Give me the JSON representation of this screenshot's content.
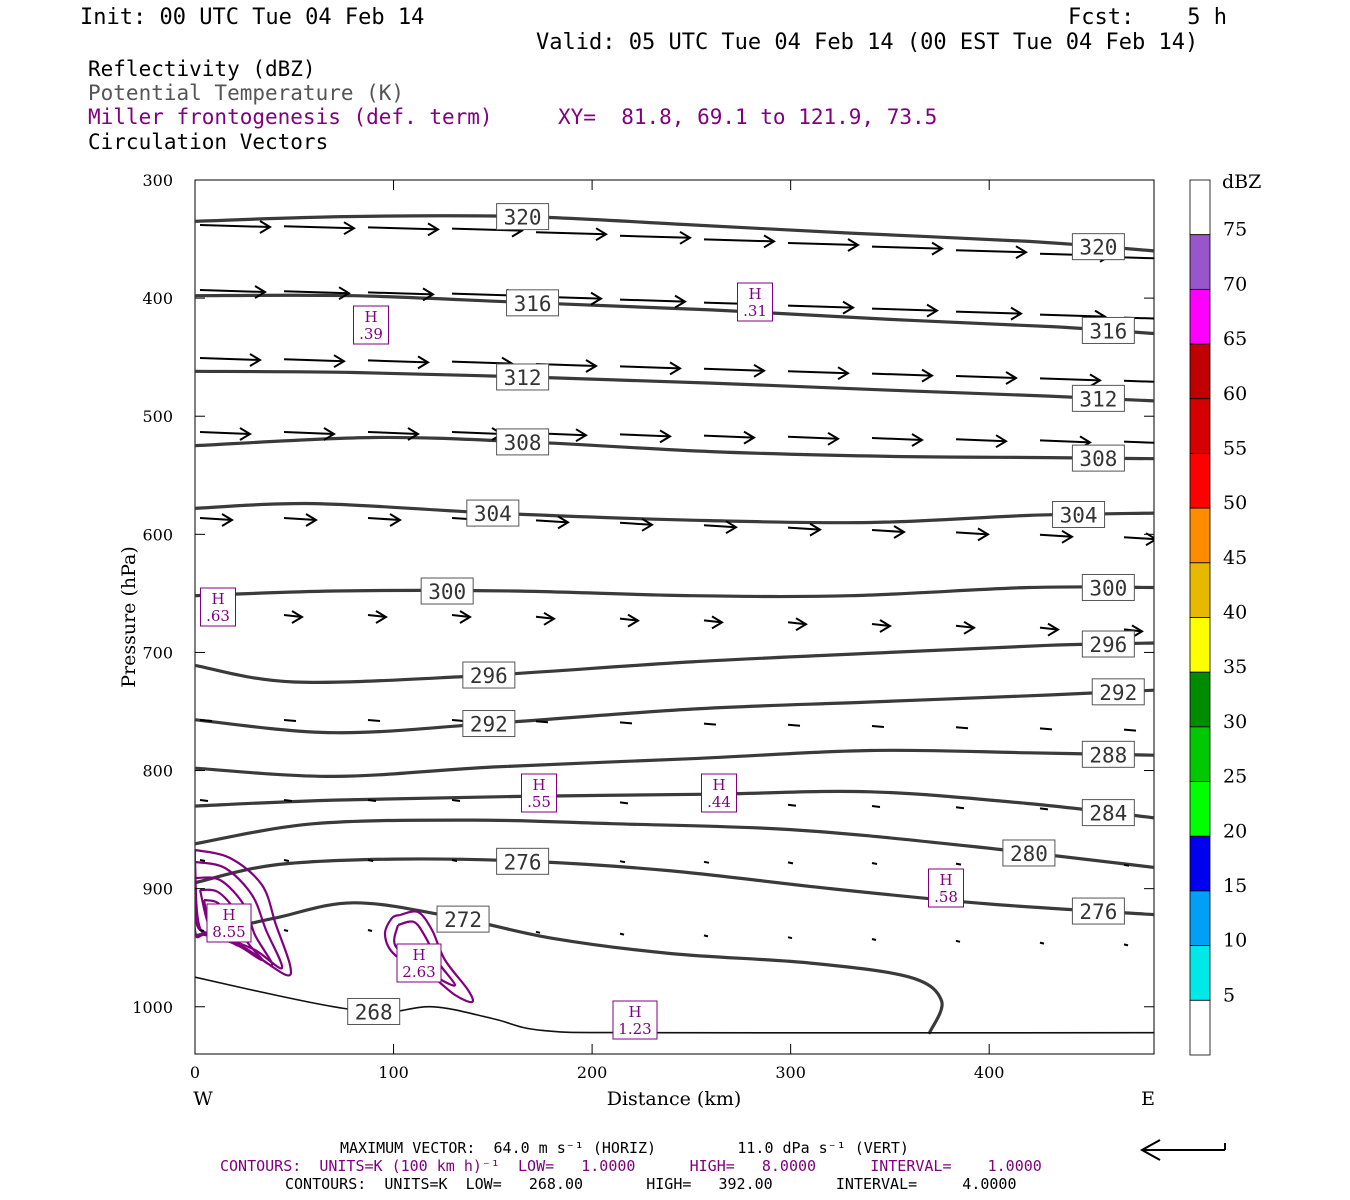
{
  "header": {
    "init": "Init: 00 UTC Tue 04 Feb 14",
    "fcst": "Fcst:    5 h",
    "valid": "Valid: 05 UTC Tue 04 Feb 14 (00 EST Tue 04 Feb 14)"
  },
  "legend": {
    "line1": "Reflectivity (dBZ)",
    "line2": "Potential Temperature (K)",
    "line3": "Miller frontogenesis (def. term)",
    "line4": "Circulation Vectors",
    "xy": "XY=  81.8, 69.1 to 121.9, 73.5"
  },
  "chart_data": {
    "type": "line",
    "xlabel": "Distance (km)",
    "ylabel": "Pressure (hPa)",
    "xlim": [
      0,
      483
    ],
    "ylim": [
      1040,
      300
    ],
    "x_ticks": [
      "0",
      "100",
      "200",
      "300",
      "400"
    ],
    "y_ticks": [
      "300",
      "400",
      "500",
      "600",
      "700",
      "800",
      "900",
      "1000"
    ],
    "x_ends": {
      "left": "W",
      "right": "E"
    },
    "theta_contours": [
      {
        "label": "320",
        "points": [
          [
            0,
            335
          ],
          [
            75,
            331
          ],
          [
            165,
            331
          ],
          [
            250,
            338
          ],
          [
            330,
            345
          ],
          [
            420,
            352
          ],
          [
            483,
            360
          ]
        ]
      },
      {
        "label": "316",
        "points": [
          [
            0,
            398
          ],
          [
            80,
            398
          ],
          [
            170,
            404
          ],
          [
            260,
            410
          ],
          [
            350,
            418
          ],
          [
            430,
            424
          ],
          [
            483,
            430
          ]
        ]
      },
      {
        "label": "312",
        "points": [
          [
            0,
            462
          ],
          [
            80,
            463
          ],
          [
            170,
            467
          ],
          [
            260,
            472
          ],
          [
            350,
            478
          ],
          [
            430,
            483
          ],
          [
            483,
            487
          ]
        ]
      },
      {
        "label": "308",
        "points": [
          [
            0,
            525
          ],
          [
            90,
            518
          ],
          [
            170,
            522
          ],
          [
            260,
            530
          ],
          [
            350,
            534
          ],
          [
            430,
            535
          ],
          [
            483,
            536
          ]
        ]
      },
      {
        "label": "304",
        "points": [
          [
            0,
            578
          ],
          [
            60,
            574
          ],
          [
            150,
            582
          ],
          [
            250,
            588
          ],
          [
            340,
            590
          ],
          [
            420,
            584
          ],
          [
            483,
            582
          ]
        ]
      },
      {
        "label": "300",
        "points": [
          [
            0,
            652
          ],
          [
            70,
            648
          ],
          [
            160,
            648
          ],
          [
            250,
            652
          ],
          [
            330,
            652
          ],
          [
            420,
            645
          ],
          [
            483,
            645
          ]
        ]
      },
      {
        "label": "296",
        "points": [
          [
            0,
            711
          ],
          [
            50,
            725
          ],
          [
            140,
            720
          ],
          [
            250,
            708
          ],
          [
            350,
            700
          ],
          [
            430,
            694
          ],
          [
            483,
            692
          ]
        ]
      },
      {
        "label": "292",
        "points": [
          [
            0,
            757
          ],
          [
            70,
            768
          ],
          [
            150,
            760
          ],
          [
            250,
            748
          ],
          [
            340,
            742
          ],
          [
            430,
            736
          ],
          [
            483,
            732
          ]
        ]
      },
      {
        "label": "288",
        "points": [
          [
            0,
            798
          ],
          [
            70,
            805
          ],
          [
            150,
            797
          ],
          [
            250,
            790
          ],
          [
            340,
            783
          ],
          [
            420,
            785
          ],
          [
            483,
            787
          ]
        ]
      },
      {
        "label": "284",
        "points": [
          [
            0,
            830
          ],
          [
            70,
            825
          ],
          [
            160,
            822
          ],
          [
            260,
            820
          ],
          [
            340,
            818
          ],
          [
            420,
            828
          ],
          [
            483,
            840
          ]
        ]
      },
      {
        "label": "280",
        "points": [
          [
            0,
            862
          ],
          [
            60,
            845
          ],
          [
            140,
            842
          ],
          [
            210,
            845
          ],
          [
            300,
            850
          ],
          [
            390,
            864
          ],
          [
            483,
            882
          ]
        ]
      },
      {
        "label": "276",
        "points": [
          [
            0,
            895
          ],
          [
            40,
            880
          ],
          [
            100,
            875
          ],
          [
            170,
            877
          ],
          [
            240,
            885
          ],
          [
            320,
            900
          ],
          [
            400,
            913
          ],
          [
            483,
            922
          ]
        ]
      },
      {
        "label": "272",
        "points": [
          [
            0,
            940
          ],
          [
            40,
            925
          ],
          [
            80,
            912
          ],
          [
            130,
            924
          ],
          [
            180,
            942
          ],
          [
            240,
            955
          ],
          [
            310,
            963
          ],
          [
            360,
            975
          ],
          [
            376,
            995
          ],
          [
            370,
            1022
          ]
        ]
      },
      {
        "label": "268",
        "points": [
          [
            0,
            975
          ],
          [
            40,
            990
          ],
          [
            70,
            1000
          ],
          [
            95,
            1005
          ],
          [
            120,
            1000
          ],
          [
            150,
            1010
          ],
          [
            175,
            1020
          ],
          [
            230,
            1022
          ],
          [
            483,
            1022
          ]
        ]
      }
    ],
    "frontogenesis_maxima": [
      {
        "label": "H",
        "value": ".39"
      },
      {
        "label": "H",
        "value": ".31"
      },
      {
        "label": "H",
        "value": ".63"
      },
      {
        "label": "H",
        "value": ".55"
      },
      {
        "label": "H",
        "value": ".44"
      },
      {
        "label": "H",
        "value": ".58"
      },
      {
        "label": "H",
        "value": "8.55"
      },
      {
        "label": "H",
        "value": "2.63"
      },
      {
        "label": "H",
        "value": "1.23"
      }
    ],
    "colorbar": {
      "title": "dBZ",
      "levels": [
        "5",
        "10",
        "15",
        "20",
        "25",
        "30",
        "35",
        "40",
        "45",
        "50",
        "55",
        "60",
        "65",
        "70",
        "75"
      ],
      "colors": [
        "#ffffff",
        "#00e8e8",
        "#00a0f5",
        "#0000f0",
        "#00ff00",
        "#00c800",
        "#008c00",
        "#ffff00",
        "#e6b800",
        "#ff8c00",
        "#ff0000",
        "#d60000",
        "#c00000",
        "#ff00ff",
        "#9955cc",
        "#ffffff"
      ]
    }
  },
  "footer": {
    "maxvec": "MAXIMUM VECTOR:  64.0 m s⁻¹ (HORIZ)         11.0 dPa s⁻¹ (VERT)",
    "contours1": "CONTOURS:  UNITS=K (100 km h)⁻¹  LOW=   1.0000      HIGH=   8.0000      INTERVAL=    1.0000",
    "contours2": "CONTOURS:  UNITS=K  LOW=   268.00       HIGH=   392.00       INTERVAL=     4.0000"
  }
}
